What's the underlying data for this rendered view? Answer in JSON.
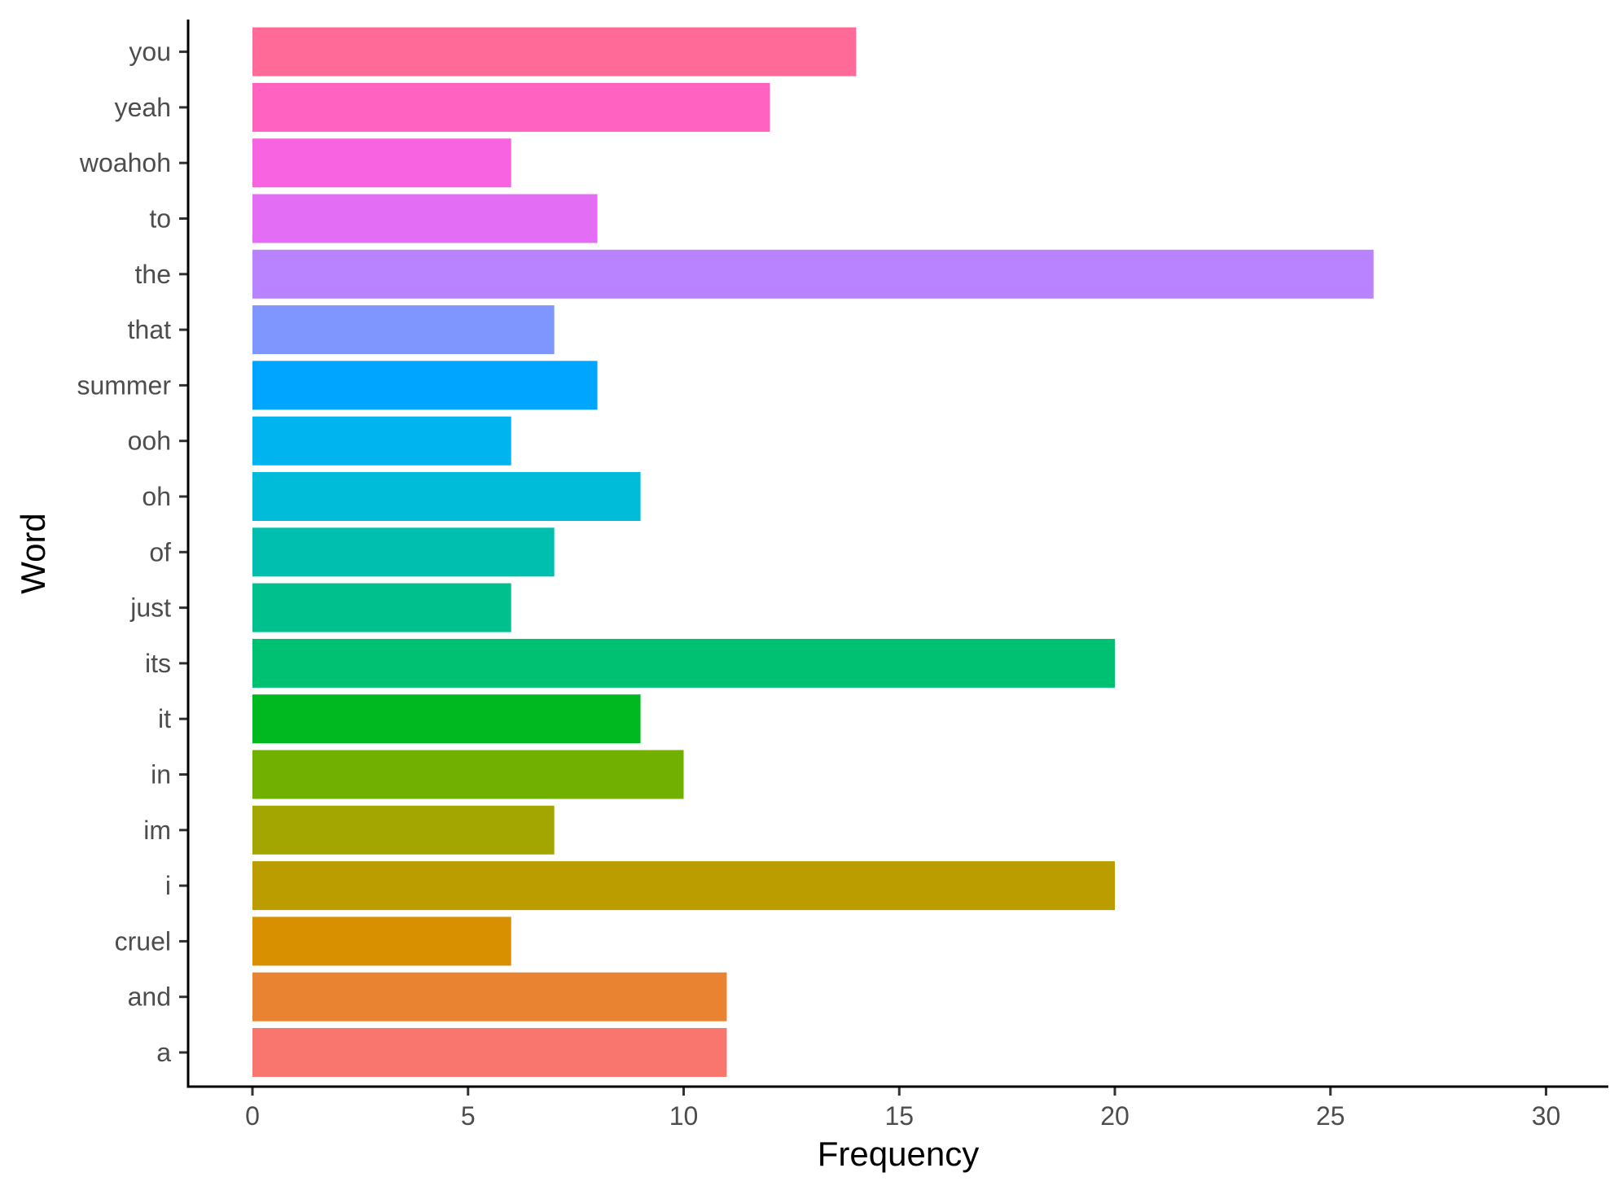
{
  "chart_data": {
    "type": "bar",
    "orientation": "horizontal",
    "xlabel": "Frequency",
    "ylabel": "Word",
    "xlim": [
      0,
      30
    ],
    "x_ticks": [
      0,
      5,
      10,
      15,
      20,
      25,
      30
    ],
    "grid": false,
    "legend": "none",
    "categories": [
      "a",
      "and",
      "cruel",
      "i",
      "im",
      "in",
      "it",
      "its",
      "just",
      "of",
      "oh",
      "ooh",
      "summer",
      "that",
      "the",
      "to",
      "woahoh",
      "yeah",
      "you"
    ],
    "values": [
      11,
      11,
      6,
      20,
      7,
      10,
      9,
      20,
      6,
      7,
      9,
      6,
      8,
      7,
      26,
      8,
      6,
      12,
      14
    ],
    "colors": [
      "#F8766D",
      "#EA8331",
      "#D89000",
      "#BC9D00",
      "#A3A500",
      "#72B000",
      "#00B81F",
      "#00C072",
      "#00C08D",
      "#00BFAE",
      "#00BCD8",
      "#00B4EF",
      "#00A5FF",
      "#7F96FF",
      "#B983FF",
      "#E46DF6",
      "#F763E0",
      "#FF62C1",
      "#FF6A99"
    ]
  }
}
